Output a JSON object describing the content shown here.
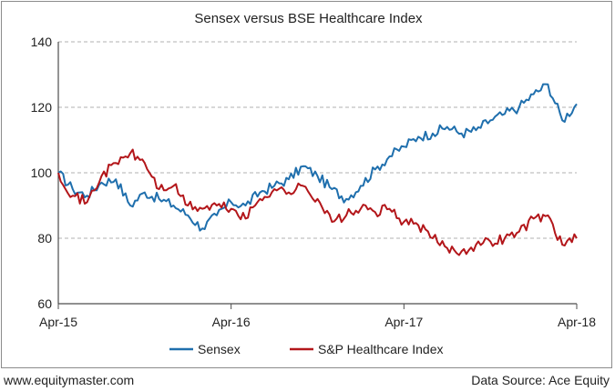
{
  "chart_data": {
    "type": "line",
    "title": "Sensex versus BSE Healthcare Index",
    "xlabel": "",
    "ylabel": "",
    "x_ticks": [
      "Apr-15",
      "Apr-16",
      "Apr-17",
      "Apr-18"
    ],
    "x_range": [
      "Apr-15",
      "Apr-18"
    ],
    "y_ticks": [
      60,
      80,
      100,
      120,
      140
    ],
    "ylim": [
      60,
      140
    ],
    "grid": "horizontal dashed",
    "legend_position": "bottom",
    "colors": {
      "Sensex": "#1f6fad",
      "S&P Healthcare Index": "#b3161a",
      "axis": "#4d4d4d",
      "grid": "#b0b0b0"
    },
    "series": [
      {
        "name": "Sensex",
        "x": [
          "2015-04",
          "2015-05",
          "2015-06",
          "2015-07",
          "2015-08",
          "2015-09",
          "2015-10",
          "2015-11",
          "2015-12",
          "2016-01",
          "2016-02",
          "2016-03",
          "2016-04",
          "2016-05",
          "2016-06",
          "2016-07",
          "2016-08",
          "2016-09",
          "2016-10",
          "2016-11",
          "2016-12",
          "2017-01",
          "2017-02",
          "2017-03",
          "2017-04",
          "2017-05",
          "2017-06",
          "2017-07",
          "2017-08",
          "2017-09",
          "2017-10",
          "2017-11",
          "2017-12",
          "2018-01",
          "2018-02",
          "2018-03",
          "2018-04"
        ],
        "values": [
          100,
          95,
          93,
          97,
          98,
          90,
          94,
          92,
          90,
          87,
          83,
          87,
          91,
          90,
          94,
          96,
          98,
          102,
          99,
          95,
          92,
          96,
          101,
          105,
          108,
          111,
          112,
          114,
          112,
          113,
          116,
          118,
          120,
          124,
          127,
          116,
          121
        ]
      },
      {
        "name": "S&P Healthcare Index",
        "x": [
          "2015-04",
          "2015-05",
          "2015-06",
          "2015-07",
          "2015-08",
          "2015-09",
          "2015-10",
          "2015-11",
          "2015-12",
          "2016-01",
          "2016-02",
          "2016-03",
          "2016-04",
          "2016-05",
          "2016-06",
          "2016-07",
          "2016-08",
          "2016-09",
          "2016-10",
          "2016-11",
          "2016-12",
          "2017-01",
          "2017-02",
          "2017-03",
          "2017-04",
          "2017-05",
          "2017-06",
          "2017-07",
          "2017-08",
          "2017-09",
          "2017-10",
          "2017-11",
          "2017-12",
          "2018-01",
          "2018-02",
          "2018-03",
          "2018-04"
        ],
        "values": [
          100,
          93,
          91,
          99,
          103,
          106,
          103,
          95,
          96,
          90,
          89,
          90,
          89,
          86,
          92,
          95,
          94,
          96,
          92,
          85,
          87,
          89,
          88,
          89,
          85,
          84,
          80,
          77,
          76,
          78,
          79,
          80,
          82,
          86,
          87,
          78,
          80
        ]
      }
    ]
  },
  "footer": {
    "website": "www.equitymaster.com",
    "source": "Data Source: Ace Equity"
  }
}
